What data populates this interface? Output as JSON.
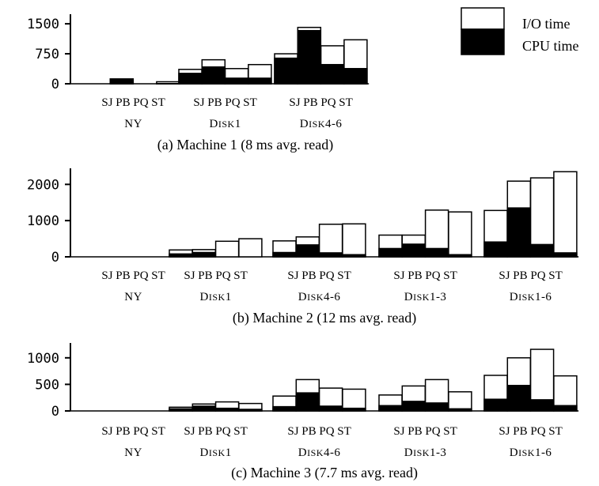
{
  "legend": {
    "items": [
      {
        "label": "I/O time",
        "color": "#ffffff"
      },
      {
        "label": "CPU time",
        "color": "#000000"
      }
    ],
    "placement": "top-right"
  },
  "chart_data": [
    {
      "type": "bar",
      "stacked": true,
      "caption": "(a) Machine 1 (8 ms avg. read)",
      "groups": [
        "NY",
        "DISK1",
        "DISK4-6"
      ],
      "categories": [
        "SJ",
        "PB",
        "PQ",
        "ST"
      ],
      "yticks": [
        0,
        750,
        1500
      ],
      "ylim": [
        0,
        1700
      ],
      "grid": false,
      "series": [
        {
          "name": "CPU time",
          "color": "#000000",
          "values": [
            [
              0,
              120,
              0,
              5
            ],
            [
              260,
              420,
              140,
              140
            ],
            [
              640,
              1330,
              480,
              380
            ]
          ]
        },
        {
          "name": "I/O time",
          "color": "#ffffff",
          "values": [
            [
              0,
              0,
              0,
              45
            ],
            [
              100,
              180,
              240,
              340
            ],
            [
              110,
              80,
              470,
              720
            ]
          ]
        }
      ]
    },
    {
      "type": "bar",
      "stacked": true,
      "caption": "(b) Machine 2 (12 ms avg. read)",
      "groups": [
        "NY",
        "DISK1",
        "DISK4-6",
        "DISK1-3",
        "DISK1-6"
      ],
      "categories": [
        "SJ",
        "PB",
        "PQ",
        "ST"
      ],
      "yticks": [
        0,
        1000,
        2000
      ],
      "ylim": [
        0,
        2400
      ],
      "grid": false,
      "series": [
        {
          "name": "CPU time",
          "color": "#000000",
          "values": [
            [
              0,
              0,
              0,
              0
            ],
            [
              80,
              120,
              0,
              0
            ],
            [
              120,
              330,
              110,
              60
            ],
            [
              230,
              350,
              230,
              60
            ],
            [
              410,
              1350,
              340,
              110
            ]
          ]
        },
        {
          "name": "I/O time",
          "color": "#ffffff",
          "values": [
            [
              0,
              0,
              0,
              0
            ],
            [
              110,
              80,
              430,
              500
            ],
            [
              320,
              220,
              790,
              850
            ],
            [
              370,
              250,
              1060,
              1180
            ],
            [
              870,
              740,
              1840,
              2240
            ]
          ]
        }
      ]
    },
    {
      "type": "bar",
      "stacked": true,
      "caption": "(c) Machine 3 (7.7 ms avg. read)",
      "groups": [
        "NY",
        "DISK1",
        "DISK4-6",
        "DISK1-3",
        "DISK1-6"
      ],
      "categories": [
        "SJ",
        "PB",
        "PQ",
        "ST"
      ],
      "yticks": [
        0,
        500,
        1000
      ],
      "ylim": [
        0,
        1250
      ],
      "grid": false,
      "series": [
        {
          "name": "CPU time",
          "color": "#000000",
          "values": [
            [
              0,
              0,
              0,
              0
            ],
            [
              40,
              90,
              50,
              30
            ],
            [
              80,
              340,
              90,
              50
            ],
            [
              100,
              180,
              150,
              40
            ],
            [
              220,
              480,
              210,
              100
            ]
          ]
        },
        {
          "name": "I/O time",
          "color": "#ffffff",
          "values": [
            [
              0,
              0,
              0,
              0
            ],
            [
              30,
              40,
              120,
              110
            ],
            [
              200,
              250,
              340,
              360
            ],
            [
              200,
              290,
              440,
              320
            ],
            [
              450,
              520,
              950,
              560
            ]
          ]
        }
      ]
    }
  ]
}
